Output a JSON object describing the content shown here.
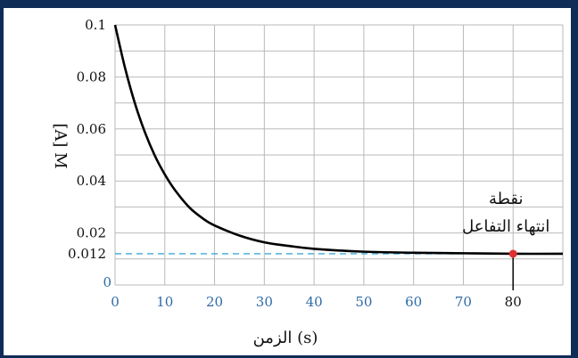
{
  "chart_data": {
    "type": "line",
    "xlabel": "الزمن (s)",
    "ylabel": "[A] M",
    "xlim": [
      0,
      90
    ],
    "ylim": [
      0,
      0.1
    ],
    "x_ticks": [
      "0",
      "10",
      "20",
      "30",
      "40",
      "50",
      "60",
      "70",
      "80"
    ],
    "y_ticks": [
      "0",
      "0.02",
      "0.04",
      "0.06",
      "0.08",
      "0.1"
    ],
    "y_extra_tick": "0.012",
    "grid": true,
    "series": [
      {
        "x": [
          0,
          2,
          4,
          6,
          8,
          10,
          12,
          15,
          18,
          20,
          25,
          30,
          35,
          40,
          50,
          60,
          70,
          80,
          90
        ],
        "y": [
          0.1,
          0.0835,
          0.0698,
          0.0587,
          0.0497,
          0.0425,
          0.0366,
          0.0297,
          0.0251,
          0.0229,
          0.019,
          0.0164,
          0.015,
          0.0139,
          0.0128,
          0.0124,
          0.0122,
          0.012,
          0.012
        ],
        "color": "#000000"
      }
    ],
    "reference_line": {
      "y": 0.012,
      "color": "#3aa8d8",
      "style": "dashed"
    },
    "annotation": {
      "x": 80,
      "y": 0.012,
      "label_line1": "نقطة",
      "label_line2": "انتهاء التفاعل",
      "point_color": "#e03030"
    }
  }
}
